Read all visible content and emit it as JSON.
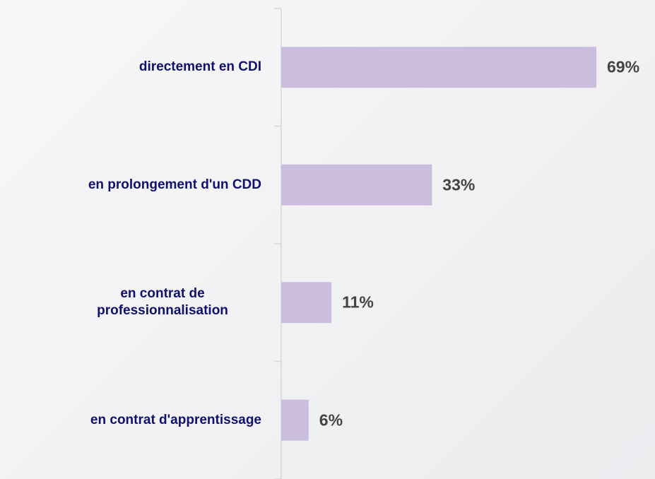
{
  "chart_data": {
    "type": "bar",
    "orientation": "horizontal",
    "categories": [
      "directement en CDI",
      "en prolongement d'un CDD",
      "en contrat de professionnalisation",
      "en contrat d'apprentissage"
    ],
    "values": [
      69,
      33,
      11,
      6
    ],
    "value_labels": [
      "69%",
      "33%",
      "11%",
      "6%"
    ],
    "color": "#cbbedd"
  }
}
